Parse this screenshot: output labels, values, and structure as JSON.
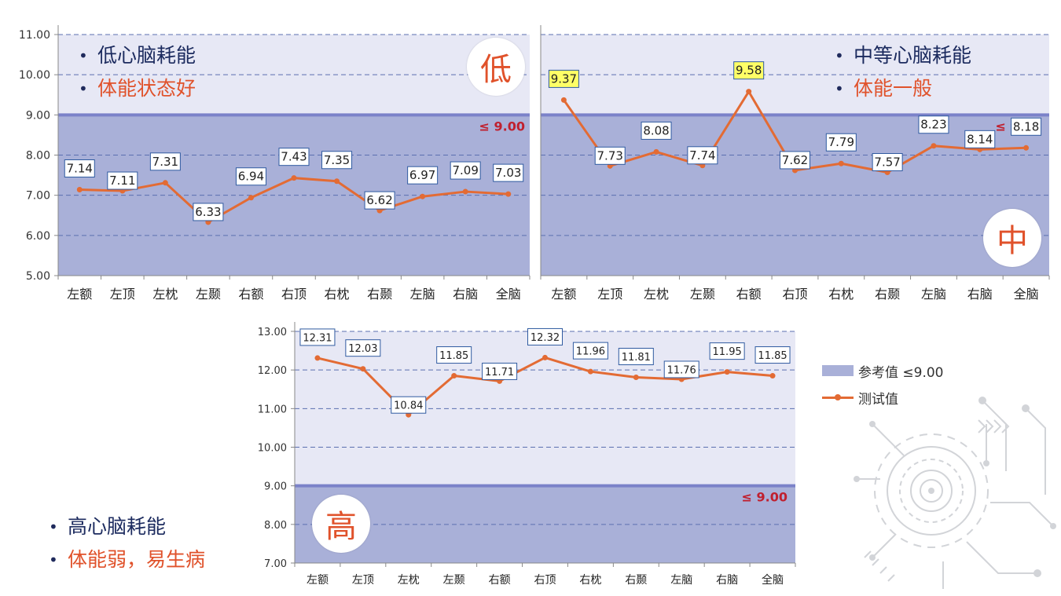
{
  "colors": {
    "ref_fill": "#a9b0d8",
    "light_fill": "#e7e8f5",
    "series": "#e36b34",
    "ref_text": "#c0202f",
    "highlight": "#ffff66",
    "dark_text": "#1b2a5e",
    "accent_text": "#e0522b"
  },
  "panels": {
    "low": {
      "bullet1": "低心脑耗能",
      "bullet2": "体能状态好",
      "badge": "低"
    },
    "mid": {
      "bullet1": "中等心脑耗能",
      "bullet2": "体能一般",
      "badge": "中"
    },
    "high": {
      "bullet1": "高心脑耗能",
      "bullet2": "体能弱，易生病",
      "badge": "高"
    }
  },
  "legend": {
    "ref_label": "参考值 ≤9.00",
    "series_label": "测试值"
  },
  "chart_data": [
    {
      "id": "low",
      "type": "line",
      "categories": [
        "左额",
        "左顶",
        "左枕",
        "左颞",
        "右额",
        "右顶",
        "右枕",
        "右颞",
        "左脑",
        "右脑",
        "全脑"
      ],
      "series": [
        {
          "name": "测试值",
          "values": [
            7.14,
            7.11,
            7.31,
            6.33,
            6.94,
            7.43,
            7.35,
            6.62,
            6.97,
            7.09,
            7.03
          ]
        }
      ],
      "ylim": [
        5,
        11
      ],
      "yticks": [
        "5.00",
        "6.00",
        "7.00",
        "8.00",
        "9.00",
        "10.00",
        "11.00"
      ],
      "reference": {
        "value": 9,
        "label": "≤ 9.00"
      },
      "highlighted": []
    },
    {
      "id": "mid",
      "type": "line",
      "categories": [
        "左额",
        "左顶",
        "左枕",
        "左颞",
        "右额",
        "右顶",
        "右枕",
        "右颞",
        "左脑",
        "右脑",
        "全脑"
      ],
      "series": [
        {
          "name": "测试值",
          "values": [
            9.37,
            7.73,
            8.08,
            7.74,
            9.58,
            7.62,
            7.79,
            7.57,
            8.23,
            8.14,
            8.18
          ]
        }
      ],
      "ylim": [
        5,
        11
      ],
      "yticks": [],
      "reference": {
        "value": 9,
        "label": "≤ 9.00"
      },
      "highlighted": [
        0,
        4
      ]
    },
    {
      "id": "high",
      "type": "line",
      "categories": [
        "左额",
        "左顶",
        "左枕",
        "左颞",
        "右额",
        "右顶",
        "右枕",
        "右颞",
        "左脑",
        "右脑",
        "全脑"
      ],
      "series": [
        {
          "name": "测试值",
          "values": [
            12.31,
            12.03,
            10.84,
            11.85,
            11.71,
            12.32,
            11.96,
            11.81,
            11.76,
            11.95,
            11.85
          ]
        }
      ],
      "ylim": [
        7,
        13
      ],
      "yticks": [
        "7.00",
        "8.00",
        "9.00",
        "10.00",
        "11.00",
        "12.00",
        "13.00"
      ],
      "reference": {
        "value": 9,
        "label": "≤ 9.00"
      },
      "highlighted": []
    }
  ]
}
